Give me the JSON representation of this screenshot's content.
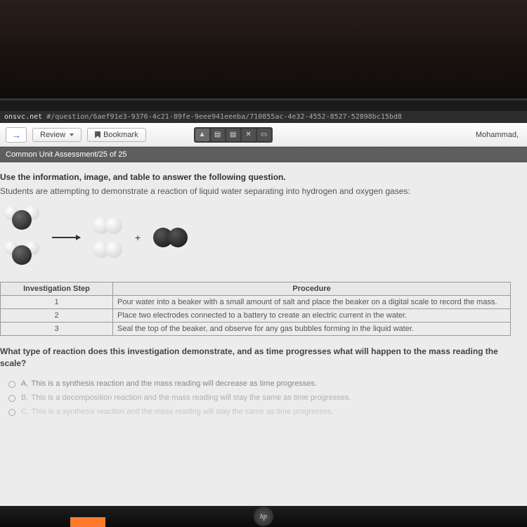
{
  "url": {
    "domain": "onsvc.net",
    "path": " #/question/6aef91e3-9376-4c21-89fe-9eee941eeeba/710855ac-4e32-4552-8527-52898bc15bd8"
  },
  "toolbar": {
    "review_label": "Review",
    "bookmark_label": "Bookmark",
    "username": "Mohammad,"
  },
  "progress": {
    "title": "Common Unit Assessment",
    "separator": "  /  ",
    "position": "25 of 25"
  },
  "instruction": {
    "bold": "Use the information, image, and table to answer the following question.",
    "text": "Students are attempting to demonstrate a reaction of liquid water separating into hydrogen and oxygen gases:"
  },
  "reaction": {
    "plus": "+"
  },
  "table": {
    "col1": "Investigation Step",
    "col2": "Procedure",
    "rows": [
      {
        "step": "1",
        "proc": "Pour water into a beaker with a small amount of salt and place the beaker on a digital scale to record the mass."
      },
      {
        "step": "2",
        "proc": "Place two electrodes connected to a battery to create an electric current in the water."
      },
      {
        "step": "3",
        "proc": "Seal the top of the beaker, and observe for any gas bubbles forming in the liquid water."
      }
    ]
  },
  "question": "What type of reaction does this investigation demonstrate, and as time progresses what will happen to the mass reading the scale?",
  "answers": [
    {
      "letter": "A.",
      "text": "This is a synthesis reaction and the mass reading will decrease as time progresses."
    },
    {
      "letter": "B.",
      "text": "This is a decomposition reaction and the mass reading will stay the same as time progresses."
    },
    {
      "letter": "C.",
      "text": "This is a synthesis reaction and the mass reading will stay the same as time progresses."
    }
  ],
  "logo": "hp"
}
